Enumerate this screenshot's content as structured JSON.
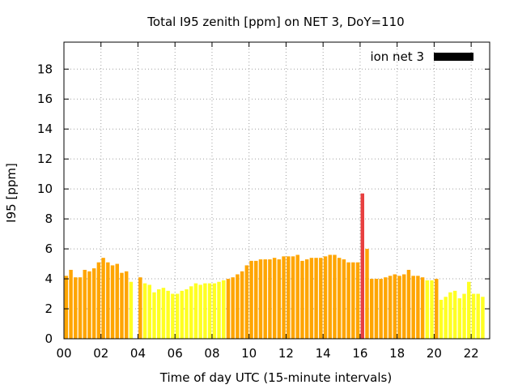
{
  "chart_data": {
    "type": "bar",
    "title": "Total I95 zenith [ppm] on NET 3, DoY=110",
    "xlabel": "Time of day UTC (15-minute intervals)",
    "ylabel": "I95 [ppm]",
    "xlim": [
      0,
      23
    ],
    "ylim": [
      0,
      19.8
    ],
    "x_ticks": [
      0,
      2,
      4,
      6,
      8,
      10,
      12,
      14,
      16,
      18,
      20,
      22
    ],
    "x_tick_labels": [
      "00",
      "02",
      "04",
      "06",
      "08",
      "10",
      "12",
      "14",
      "16",
      "18",
      "20",
      "22"
    ],
    "y_ticks": [
      0,
      2,
      4,
      6,
      8,
      10,
      12,
      14,
      16,
      18
    ],
    "y_tick_labels": [
      "0",
      "2",
      "4",
      "6",
      "8",
      "10",
      "12",
      "14",
      "16",
      "18"
    ],
    "grid": true,
    "legend_position": "top-right",
    "legend": [
      {
        "name": "ion net 3",
        "color": "#000000"
      }
    ],
    "interval_hours": 0.25,
    "x_start": 0.125,
    "values": [
      4.2,
      4.6,
      4.1,
      4.1,
      4.6,
      4.5,
      4.7,
      5.1,
      5.4,
      5.1,
      4.9,
      5.0,
      4.4,
      4.5,
      3.8,
      0,
      4.1,
      3.7,
      3.6,
      3.1,
      3.3,
      3.4,
      3.2,
      3.0,
      3.0,
      3.2,
      3.3,
      3.5,
      3.7,
      3.6,
      3.7,
      3.7,
      3.7,
      3.8,
      3.9,
      4.0,
      4.1,
      4.3,
      4.5,
      4.9,
      5.2,
      5.2,
      5.3,
      5.3,
      5.3,
      5.4,
      5.3,
      5.5,
      5.5,
      5.5,
      5.6,
      5.2,
      5.3,
      5.4,
      5.4,
      5.4,
      5.5,
      5.6,
      5.6,
      5.4,
      5.3,
      5.1,
      5.1,
      5.1,
      9.7,
      6.0,
      4.0,
      4.0,
      4.0,
      4.1,
      4.2,
      4.3,
      4.2,
      4.3,
      4.6,
      4.2,
      4.2,
      4.1,
      3.9,
      3.9,
      4.0,
      2.6,
      2.8,
      3.1,
      3.2,
      2.7,
      3.0,
      3.8,
      3.0,
      3.0,
      2.8
    ],
    "color_thresholds": {
      "yellow_below": 4.0,
      "red_at_or_above": 9.0
    },
    "colors": {
      "low": "#ffff22",
      "mid": "#ffa500",
      "high": "#e84040",
      "legend_swatch": "#000000"
    }
  }
}
